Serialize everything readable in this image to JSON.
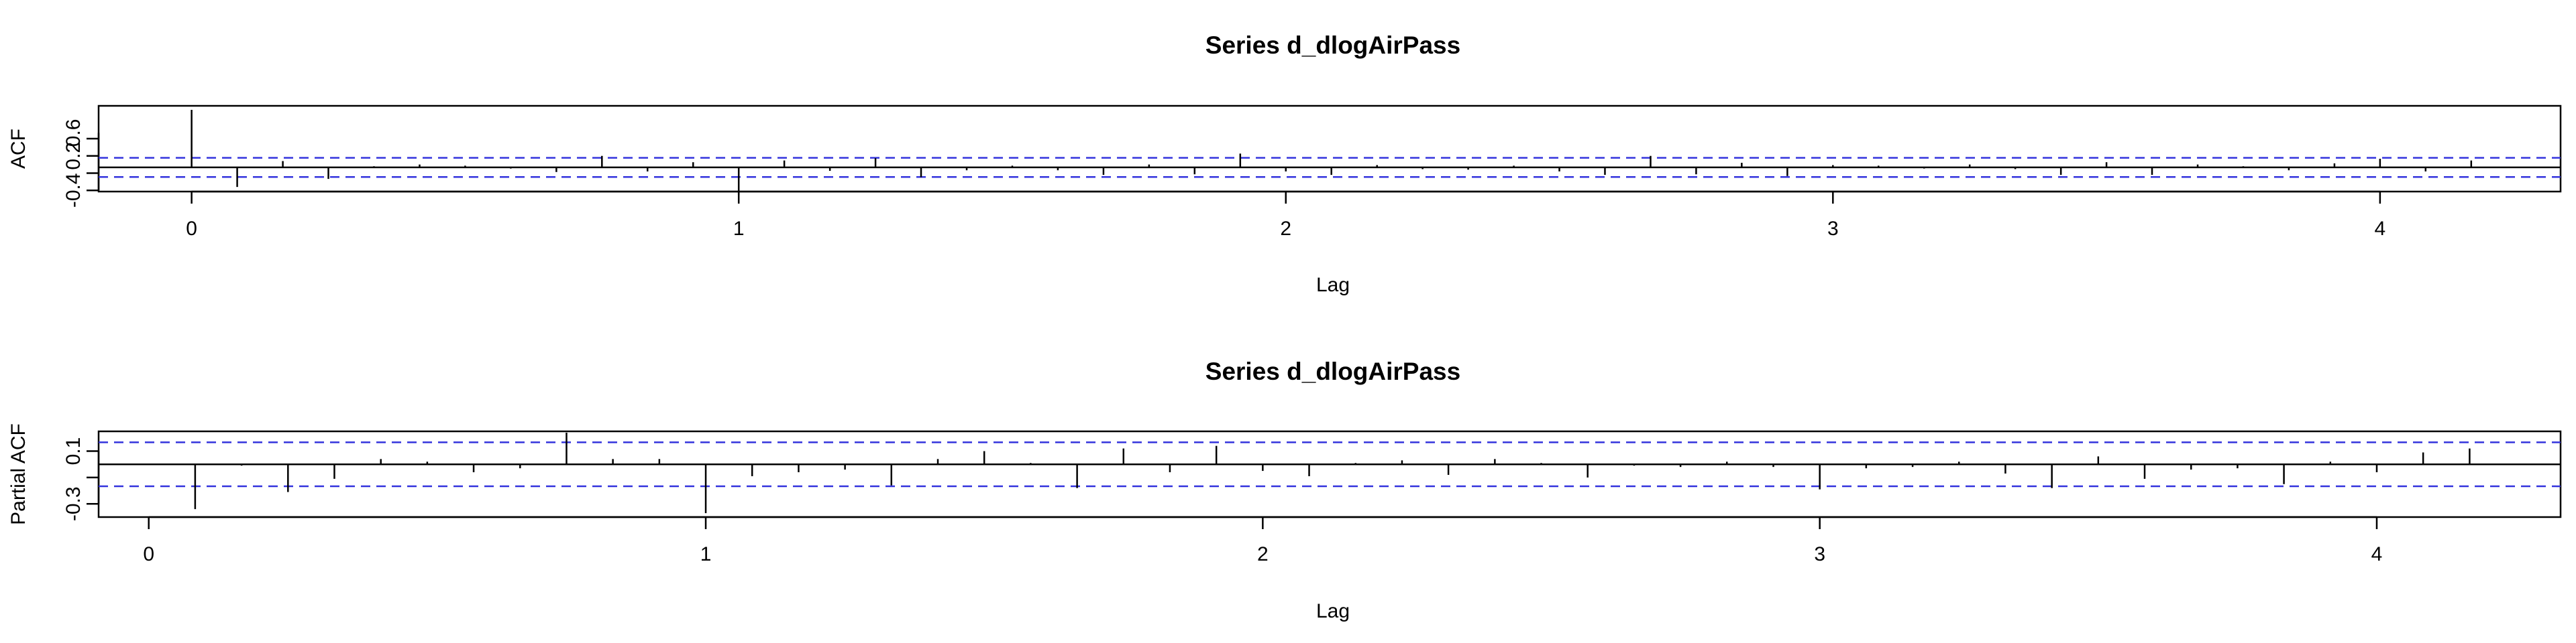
{
  "chart_data": [
    {
      "type": "bar",
      "title": "Series  d_dlogAirPass",
      "xlabel": "Lag",
      "ylabel": "ACF",
      "xlim": [
        -0.17,
        4.33
      ],
      "ylim": [
        -0.42,
        1.07
      ],
      "x_ticks": [
        {
          "value": 0,
          "label": "0"
        },
        {
          "value": 1,
          "label": "1"
        },
        {
          "value": 2,
          "label": "2"
        },
        {
          "value": 3,
          "label": "3"
        },
        {
          "value": 4,
          "label": "4"
        }
      ],
      "y_ticks": [
        {
          "value": -0.4,
          "label": "-0.4"
        },
        {
          "value": 0.2,
          "label": "0.2"
        },
        {
          "value": 0.6,
          "label": "0.6"
        }
      ],
      "confidence_bound": 0.1667,
      "series": [
        {
          "lags": [
            0,
            0.0833,
            0.1667,
            0.25,
            0.3333,
            0.4167,
            0.5,
            0.5833,
            0.6667,
            0.75,
            0.8333,
            0.9167,
            1.0,
            1.0833,
            1.1667,
            1.25,
            1.3333,
            1.4167,
            1.5,
            1.5833,
            1.6667,
            1.75,
            1.8333,
            1.9167,
            2.0,
            2.0833,
            2.1667,
            2.25,
            2.3333,
            2.4167,
            2.5,
            2.5833,
            2.6667,
            2.75,
            2.8333,
            2.9167,
            3.0,
            3.0833,
            3.1667,
            3.25,
            3.3333,
            3.4167,
            3.5,
            3.5833,
            3.6667,
            3.75,
            3.8333,
            3.9167,
            4.0,
            4.0833,
            4.1667
          ],
          "values": [
            1.0,
            -0.34,
            0.11,
            -0.2,
            0.02,
            0.05,
            0.03,
            -0.02,
            -0.08,
            0.2,
            -0.07,
            0.09,
            -0.48,
            0.12,
            -0.06,
            0.16,
            -0.17,
            -0.05,
            0.03,
            -0.05,
            -0.13,
            0.05,
            -0.12,
            0.24,
            -0.07,
            -0.13,
            0.04,
            -0.03,
            -0.04,
            0.03,
            -0.07,
            -0.13,
            0.2,
            -0.12,
            0.08,
            -0.15,
            0.04,
            0.03,
            -0.02,
            0.05,
            -0.03,
            -0.13,
            0.09,
            -0.13,
            0.05,
            0.02,
            -0.05,
            0.07,
            0.15,
            -0.07,
            0.12
          ]
        }
      ]
    },
    {
      "type": "bar",
      "title": "Series  d_dlogAirPass",
      "xlabel": "Lag",
      "ylabel": "Partial ACF",
      "xlim": [
        -0.09,
        4.33
      ],
      "ylim": [
        -0.4,
        0.25
      ],
      "x_ticks": [
        {
          "value": 0,
          "label": "0"
        },
        {
          "value": 1,
          "label": "1"
        },
        {
          "value": 2,
          "label": "2"
        },
        {
          "value": 3,
          "label": "3"
        },
        {
          "value": 4,
          "label": "4"
        }
      ],
      "y_ticks": [
        {
          "value": -0.3,
          "label": "-0.3"
        },
        {
          "value": 0.1,
          "label": "0.1"
        }
      ],
      "confidence_bound": 0.1667,
      "series": [
        {
          "lags": [
            0.0833,
            0.1667,
            0.25,
            0.3333,
            0.4167,
            0.5,
            0.5833,
            0.6667,
            0.75,
            0.8333,
            0.9167,
            1.0,
            1.0833,
            1.1667,
            1.25,
            1.3333,
            1.4167,
            1.5,
            1.5833,
            1.6667,
            1.75,
            1.8333,
            1.9167,
            2.0,
            2.0833,
            2.1667,
            2.25,
            2.3333,
            2.4167,
            2.5,
            2.5833,
            2.6667,
            2.75,
            2.8333,
            2.9167,
            3.0,
            3.0833,
            3.1667,
            3.25,
            3.3333,
            3.4167,
            3.5,
            3.5833,
            3.6667,
            3.75,
            3.8333,
            3.9167,
            4.0,
            4.0833,
            4.1667
          ],
          "values": [
            -0.34,
            -0.01,
            -0.21,
            -0.11,
            0.04,
            0.02,
            -0.06,
            -0.03,
            0.24,
            0.04,
            0.04,
            -0.37,
            -0.09,
            -0.06,
            -0.04,
            -0.16,
            0.04,
            0.1,
            0.01,
            -0.18,
            0.12,
            -0.06,
            0.14,
            -0.05,
            -0.09,
            0.01,
            0.03,
            -0.08,
            0.04,
            0.01,
            -0.1,
            -0.01,
            -0.02,
            0.02,
            -0.02,
            -0.19,
            -0.03,
            -0.02,
            0.02,
            -0.07,
            -0.18,
            0.06,
            -0.11,
            -0.04,
            -0.03,
            -0.15,
            0.02,
            -0.06,
            0.09,
            0.12
          ]
        }
      ]
    }
  ]
}
